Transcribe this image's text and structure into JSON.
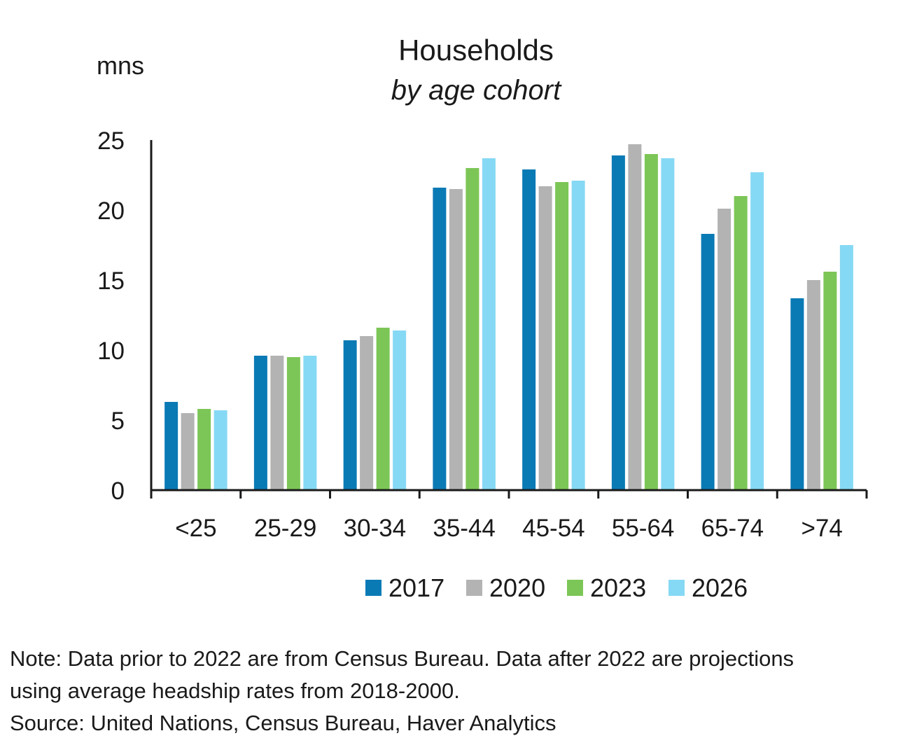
{
  "chart_data": {
    "type": "bar",
    "title": "Households",
    "subtitle": "by age cohort",
    "ylabel": "mns",
    "xlabel": "",
    "ylim": [
      0,
      25
    ],
    "yticks": [
      0,
      5,
      10,
      15,
      20,
      25
    ],
    "grid": false,
    "legend_position": "bottom",
    "categories": [
      "<25",
      "25-29",
      "30-34",
      "35-44",
      "45-54",
      "55-64",
      "65-74",
      ">74"
    ],
    "series": [
      {
        "name": "2017",
        "color": "#0a7ab5",
        "values": [
          6.3,
          9.6,
          10.7,
          21.6,
          22.9,
          23.9,
          18.3,
          13.7
        ]
      },
      {
        "name": "2020",
        "color": "#b3b3b3",
        "values": [
          5.5,
          9.6,
          11.0,
          21.5,
          21.7,
          24.7,
          20.1,
          15.0
        ]
      },
      {
        "name": "2023",
        "color": "#7cc657",
        "values": [
          5.8,
          9.5,
          11.6,
          23.0,
          22.0,
          24.0,
          21.0,
          15.6
        ]
      },
      {
        "name": "2026",
        "color": "#86d9f4",
        "values": [
          5.7,
          9.6,
          11.4,
          23.7,
          22.1,
          23.7,
          22.7,
          17.5
        ]
      }
    ]
  },
  "notes": {
    "line1": "Note: Data prior to 2022 are from Census Bureau. Data after 2022 are projections",
    "line2": "using average headship rates from 2018-2000.",
    "line3": "Source: United Nations, Census Bureau, Haver Analytics"
  }
}
